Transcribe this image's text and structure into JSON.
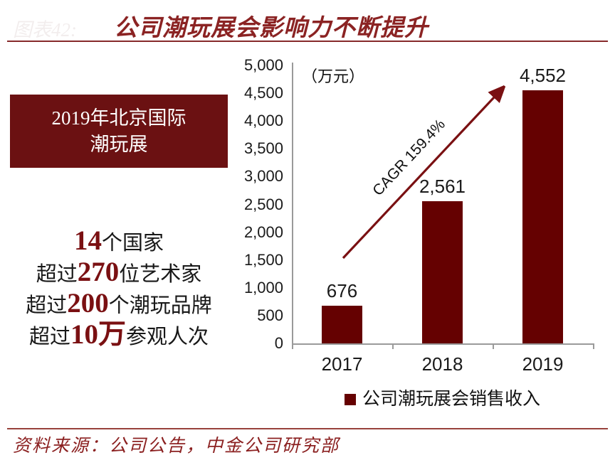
{
  "header": {
    "faint_label": "图表42:",
    "title": "公司潮玩展会影响力不断提升"
  },
  "left_panel": {
    "box_line1": "2019年北京国际",
    "box_line2": "潮玩展",
    "facts": [
      {
        "prefix": "",
        "number": "14",
        "suffix": "个国家"
      },
      {
        "prefix": "超过",
        "number": "270",
        "suffix": "位艺术家"
      },
      {
        "prefix": "超过",
        "number": "200",
        "suffix": "个潮玩品牌"
      },
      {
        "prefix": "超过",
        "number": "10万",
        "suffix": "参观人次"
      }
    ]
  },
  "chart_data": {
    "type": "bar",
    "title": "",
    "unit_label": "（万元）",
    "categories": [
      "2017",
      "2018",
      "2019"
    ],
    "values": [
      676,
      2561,
      4552
    ],
    "value_labels": [
      "676",
      "2,561",
      "4,552"
    ],
    "y_ticks": [
      "0",
      "500",
      "1,000",
      "1,500",
      "2,000",
      "2,500",
      "3,000",
      "3,500",
      "4,000",
      "4,500",
      "5,000"
    ],
    "ylim": [
      0,
      5000
    ],
    "grid": false,
    "legend": "公司潮玩展会销售收入",
    "legend_position": "bottom",
    "annotation": "CAGR 159.4%",
    "bar_color": "#650101",
    "arrow_color": "#7a1012",
    "axis_color": "#9a9a9a"
  },
  "footer": {
    "source": "资料来源：公司公告，中金公司研究部"
  },
  "colors": {
    "accent_red": "#8b2323",
    "box_bg": "#6b1112",
    "number_red": "#7a1012"
  }
}
